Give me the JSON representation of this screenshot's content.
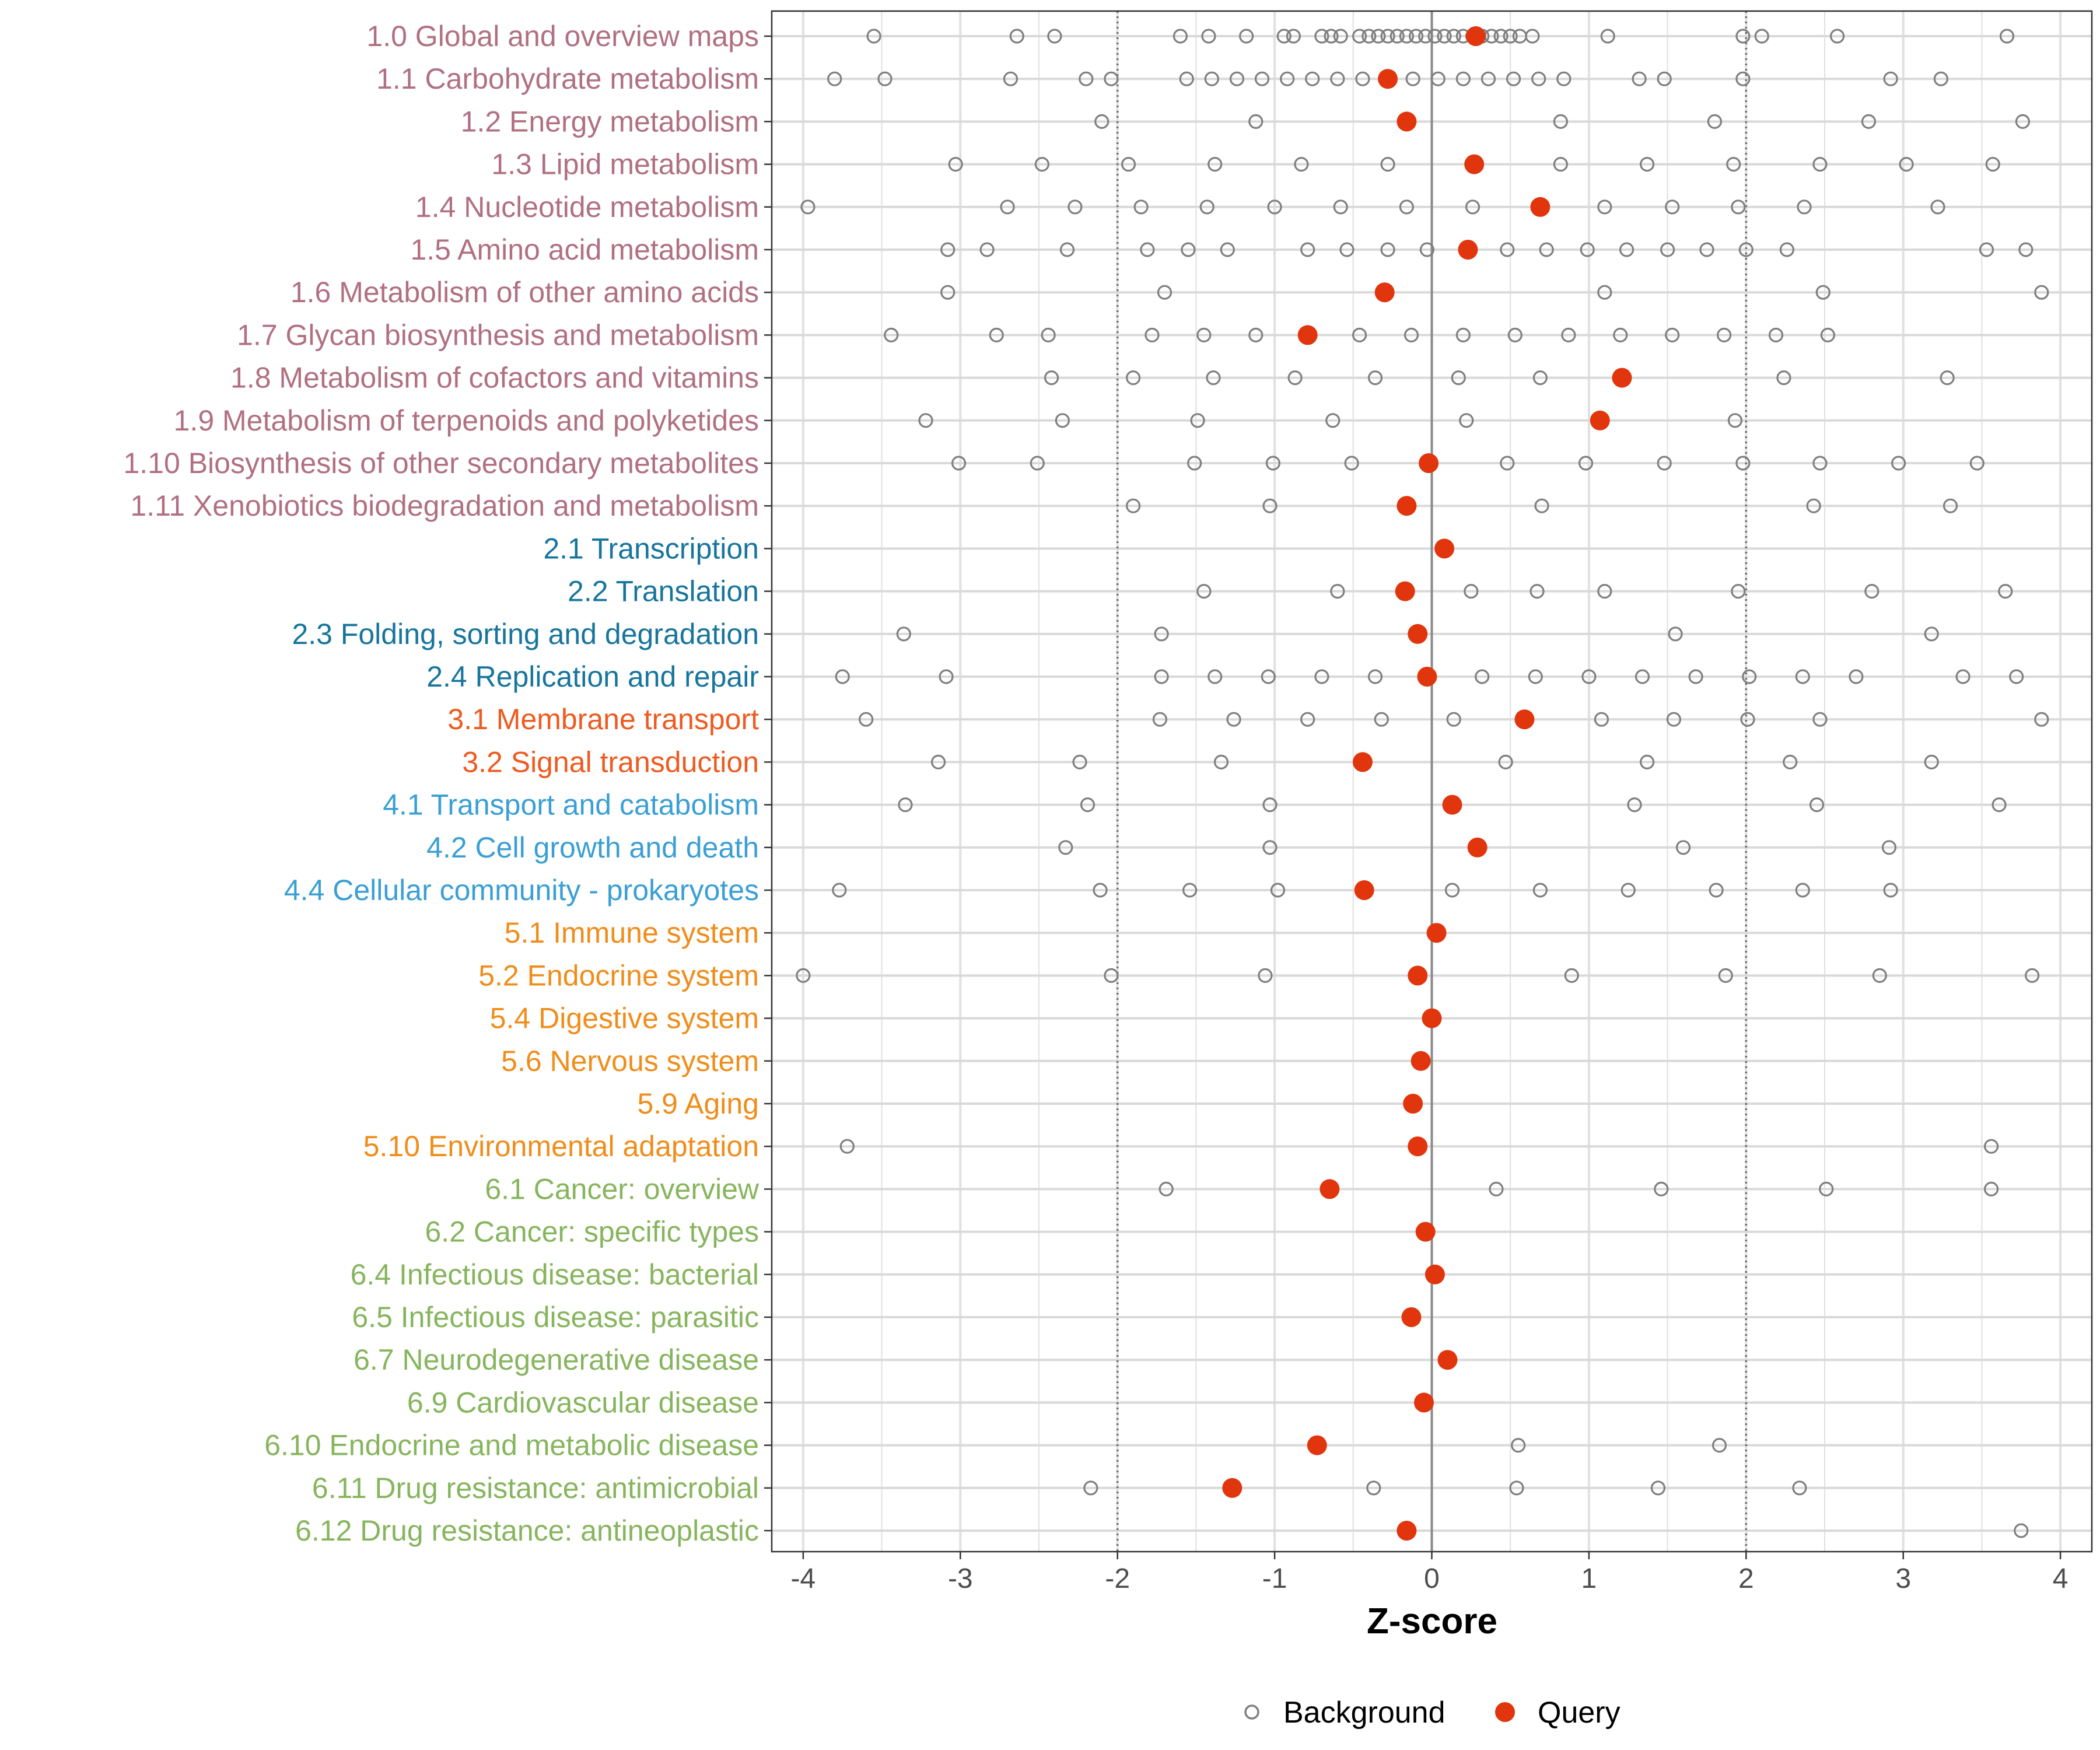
{
  "chart_data": {
    "type": "scatter",
    "xlabel": "Z-score",
    "xlim": [
      -4.2,
      4.2
    ],
    "xticks": [
      -4,
      -3,
      -2,
      -1,
      0,
      1,
      2,
      3,
      4
    ],
    "reference_lines": [
      -2,
      0,
      2
    ],
    "legend": {
      "position": "bottom",
      "entries": [
        {
          "name": "Background",
          "marker": "open-circle"
        },
        {
          "name": "Query",
          "marker": "filled-circle"
        }
      ]
    },
    "group_colors": {
      "1": "#b07082",
      "2": "#17759c",
      "3": "#ee5a1f",
      "4": "#3a9fd4",
      "5": "#f08d1a",
      "6": "#86b55d"
    },
    "marker_colors": {
      "background": "#7f7f7f",
      "query": "#e0350d"
    },
    "categories": [
      {
        "label": "1.0 Global and overview maps",
        "group": "1",
        "query": 0.28,
        "background": [
          -3.55,
          -2.64,
          -2.4,
          -1.6,
          -1.42,
          -1.18,
          -0.94,
          -0.88,
          -0.7,
          -0.64,
          -0.58,
          -0.46,
          -0.4,
          -0.34,
          -0.28,
          -0.22,
          -0.16,
          -0.1,
          -0.04,
          0.02,
          0.08,
          0.14,
          0.2,
          0.26,
          0.32,
          0.38,
          0.44,
          0.5,
          0.56,
          0.64,
          1.12,
          1.98,
          2.1,
          2.58,
          3.66
        ]
      },
      {
        "label": "1.1 Carbohydrate metabolism",
        "group": "1",
        "query": -0.28,
        "background": [
          -3.8,
          -3.48,
          -2.68,
          -2.2,
          -2.04,
          -1.56,
          -1.4,
          -1.24,
          -1.08,
          -0.92,
          -0.76,
          -0.6,
          -0.44,
          -0.12,
          0.04,
          0.2,
          0.36,
          0.52,
          0.68,
          0.84,
          1.32,
          1.48,
          1.98,
          2.92,
          3.24
        ]
      },
      {
        "label": "1.2 Energy metabolism",
        "group": "1",
        "query": -0.16,
        "background": [
          -2.1,
          -1.12,
          0.82,
          1.8,
          2.78,
          3.76
        ]
      },
      {
        "label": "1.3 Lipid metabolism",
        "group": "1",
        "query": 0.27,
        "background": [
          -3.03,
          -2.48,
          -1.93,
          -1.38,
          -0.83,
          -0.28,
          0.82,
          1.37,
          1.92,
          2.47,
          3.02,
          3.57
        ]
      },
      {
        "label": "1.4 Nucleotide metabolism",
        "group": "1",
        "query": 0.69,
        "background": [
          -3.97,
          -2.7,
          -2.27,
          -1.85,
          -1.43,
          -1.0,
          -0.58,
          -0.16,
          0.26,
          1.1,
          1.53,
          1.95,
          2.37,
          3.22
        ]
      },
      {
        "label": "1.5 Amino acid metabolism",
        "group": "1",
        "query": 0.23,
        "background": [
          -3.08,
          -2.83,
          -2.32,
          -1.81,
          -1.55,
          -1.3,
          -0.79,
          -0.54,
          -0.28,
          -0.03,
          0.48,
          0.73,
          0.99,
          1.24,
          1.5,
          1.75,
          2.0,
          2.26,
          3.53,
          3.78
        ]
      },
      {
        "label": "1.6 Metabolism of other amino acids",
        "group": "1",
        "query": -0.3,
        "background": [
          -3.08,
          -1.7,
          1.1,
          2.49,
          3.88
        ]
      },
      {
        "label": "1.7 Glycan biosynthesis and metabolism",
        "group": "1",
        "query": -0.79,
        "background": [
          -3.44,
          -2.77,
          -2.44,
          -1.78,
          -1.45,
          -1.12,
          -0.46,
          -0.13,
          0.2,
          0.53,
          0.87,
          1.2,
          1.53,
          1.86,
          2.19,
          2.52
        ]
      },
      {
        "label": "1.8 Metabolism of cofactors and vitamins",
        "group": "1",
        "query": 1.21,
        "background": [
          -2.42,
          -1.9,
          -1.39,
          -0.87,
          -0.36,
          0.17,
          0.69,
          2.24,
          3.28
        ]
      },
      {
        "label": "1.9 Metabolism of terpenoids and polyketides",
        "group": "1",
        "query": 1.07,
        "background": [
          -3.22,
          -2.35,
          -1.49,
          -0.63,
          0.22,
          1.93
        ]
      },
      {
        "label": "1.10 Biosynthesis of other secondary metabolites",
        "group": "1",
        "query": -0.02,
        "background": [
          -3.01,
          -2.51,
          -1.51,
          -1.01,
          -0.51,
          0.48,
          0.98,
          1.48,
          1.98,
          2.47,
          2.97,
          3.47
        ]
      },
      {
        "label": "1.11 Xenobiotics biodegradation and metabolism",
        "group": "1",
        "query": -0.16,
        "background": [
          -1.9,
          -1.03,
          -0.17,
          0.7,
          2.43,
          3.3
        ]
      },
      {
        "label": "2.1 Transcription",
        "group": "2",
        "query": 0.08,
        "background": []
      },
      {
        "label": "2.2 Translation",
        "group": "2",
        "query": -0.17,
        "background": [
          -1.45,
          -0.6,
          0.25,
          0.67,
          1.1,
          1.95,
          2.8,
          3.65
        ]
      },
      {
        "label": "2.3 Folding, sorting and degradation",
        "group": "2",
        "query": -0.09,
        "background": [
          -3.36,
          -1.72,
          1.55,
          3.18
        ]
      },
      {
        "label": "2.4 Replication and repair",
        "group": "2",
        "query": -0.03,
        "background": [
          -3.75,
          -3.09,
          -1.72,
          -1.38,
          -1.04,
          -0.7,
          -0.36,
          0.32,
          0.66,
          1.0,
          1.34,
          1.68,
          2.02,
          2.36,
          2.7,
          3.38,
          3.72
        ]
      },
      {
        "label": "3.1 Membrane transport",
        "group": "3",
        "query": 0.59,
        "background": [
          -3.6,
          -1.73,
          -1.26,
          -0.79,
          -0.32,
          0.14,
          1.08,
          1.54,
          2.01,
          2.47,
          3.88
        ]
      },
      {
        "label": "3.2 Signal transduction",
        "group": "3",
        "query": -0.44,
        "background": [
          -3.14,
          -2.24,
          -1.34,
          0.47,
          1.37,
          2.28,
          3.18
        ]
      },
      {
        "label": "4.1 Transport and catabolism",
        "group": "4",
        "query": 0.13,
        "background": [
          -3.35,
          -2.19,
          -1.03,
          1.29,
          2.45,
          3.61
        ]
      },
      {
        "label": "4.2 Cell growth and death",
        "group": "4",
        "query": 0.29,
        "background": [
          -2.33,
          -1.03,
          1.6,
          2.91
        ]
      },
      {
        "label": "4.4 Cellular community - prokaryotes",
        "group": "4",
        "query": -0.43,
        "background": [
          -3.77,
          -2.11,
          -1.54,
          -0.98,
          0.13,
          0.69,
          1.25,
          1.81,
          2.36,
          2.92
        ]
      },
      {
        "label": "5.1 Immune system",
        "group": "5",
        "query": 0.03,
        "background": []
      },
      {
        "label": "5.2 Endocrine system",
        "group": "5",
        "query": -0.09,
        "background": [
          -4.0,
          -2.04,
          -1.06,
          0.89,
          1.87,
          2.85,
          3.82
        ]
      },
      {
        "label": "5.4 Digestive system",
        "group": "5",
        "query": 0.0,
        "background": []
      },
      {
        "label": "5.6 Nervous system",
        "group": "5",
        "query": -0.07,
        "background": []
      },
      {
        "label": "5.9 Aging",
        "group": "5",
        "query": -0.12,
        "background": []
      },
      {
        "label": "5.10 Environmental adaptation",
        "group": "5",
        "query": -0.09,
        "background": [
          -3.72,
          3.56
        ]
      },
      {
        "label": "6.1 Cancer: overview",
        "group": "6",
        "query": -0.65,
        "background": [
          -1.69,
          0.41,
          1.46,
          2.51,
          3.56
        ]
      },
      {
        "label": "6.2 Cancer: specific types",
        "group": "6",
        "query": -0.04,
        "background": []
      },
      {
        "label": "6.4 Infectious disease: bacterial",
        "group": "6",
        "query": 0.02,
        "background": []
      },
      {
        "label": "6.5 Infectious disease: parasitic",
        "group": "6",
        "query": -0.13,
        "background": []
      },
      {
        "label": "6.7 Neurodegenerative disease",
        "group": "6",
        "query": 0.1,
        "background": []
      },
      {
        "label": "6.9 Cardiovascular disease",
        "group": "6",
        "query": -0.05,
        "background": []
      },
      {
        "label": "6.10 Endocrine and metabolic disease",
        "group": "6",
        "query": -0.73,
        "background": [
          0.55,
          1.83
        ]
      },
      {
        "label": "6.11 Drug resistance: antimicrobial",
        "group": "6",
        "query": -1.27,
        "background": [
          -2.17,
          -0.37,
          0.54,
          1.44,
          2.34
        ]
      },
      {
        "label": "6.12 Drug resistance: antineoplastic",
        "group": "6",
        "query": -0.16,
        "background": [
          3.75
        ]
      }
    ]
  }
}
